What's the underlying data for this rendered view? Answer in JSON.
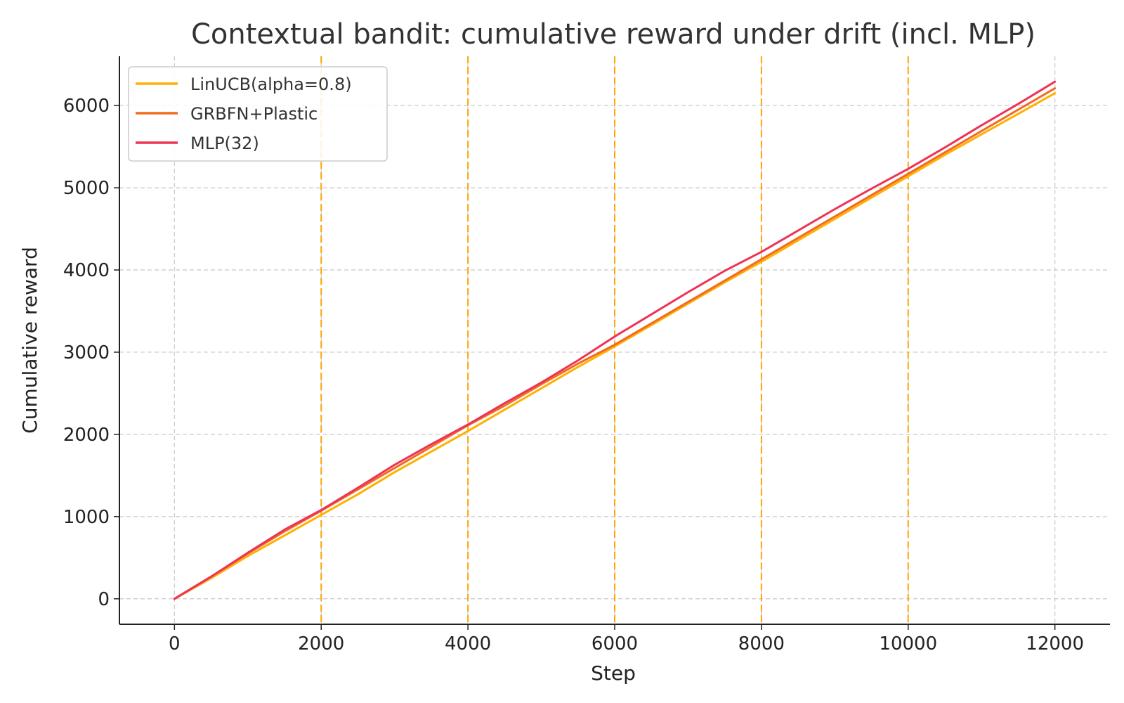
{
  "chart_data": {
    "type": "line",
    "title": "Contextual bandit: cumulative reward under drift (incl. MLP)",
    "xlabel": "Step",
    "ylabel": "Cumulative reward",
    "xlim": [
      -750,
      12750
    ],
    "ylim": [
      -310,
      6600
    ],
    "xticks": [
      0,
      2000,
      4000,
      6000,
      8000,
      10000,
      12000
    ],
    "yticks": [
      0,
      1000,
      2000,
      3000,
      4000,
      5000,
      6000
    ],
    "grid": true,
    "legend_position": "top-left",
    "drift_markers": [
      2000,
      4000,
      6000,
      8000,
      10000
    ],
    "drift_marker_color": "#FFA500",
    "series": [
      {
        "name": "LinUCB(alpha=0.8)",
        "color": "#FFB000",
        "x": [
          0,
          500,
          1000,
          1500,
          2000,
          2500,
          3000,
          3500,
          4000,
          4500,
          5000,
          5500,
          6000,
          6500,
          7000,
          7500,
          8000,
          8500,
          9000,
          9500,
          10000,
          10500,
          11000,
          11500,
          12000
        ],
        "y": [
          0,
          250,
          520,
          770,
          1020,
          1270,
          1540,
          1790,
          2040,
          2300,
          2560,
          2820,
          3070,
          3330,
          3590,
          3850,
          4100,
          4360,
          4620,
          4880,
          5140,
          5400,
          5650,
          5900,
          6150
        ]
      },
      {
        "name": "GRBFN+Plastic",
        "color": "#F26B21",
        "x": [
          0,
          500,
          1000,
          1500,
          2000,
          2500,
          3000,
          3500,
          4000,
          4500,
          5000,
          5500,
          6000,
          6500,
          7000,
          7500,
          8000,
          8500,
          9000,
          9500,
          10000,
          10500,
          11000,
          11500,
          12000
        ],
        "y": [
          0,
          270,
          550,
          820,
          1070,
          1330,
          1590,
          1850,
          2110,
          2350,
          2610,
          2860,
          3090,
          3350,
          3610,
          3870,
          4130,
          4390,
          4650,
          4910,
          5170,
          5430,
          5690,
          5950,
          6210
        ]
      },
      {
        "name": "MLP(32)",
        "color": "#EE3355",
        "x": [
          0,
          500,
          1000,
          1500,
          2000,
          2500,
          3000,
          3500,
          4000,
          4500,
          5000,
          5500,
          6000,
          6500,
          7000,
          7500,
          8000,
          8500,
          9000,
          9500,
          10000,
          10500,
          11000,
          11500,
          12000
        ],
        "y": [
          0,
          270,
          560,
          840,
          1080,
          1350,
          1630,
          1880,
          2120,
          2380,
          2630,
          2900,
          3190,
          3460,
          3730,
          3990,
          4220,
          4480,
          4740,
          4990,
          5230,
          5490,
          5760,
          6020,
          6290
        ]
      }
    ]
  }
}
